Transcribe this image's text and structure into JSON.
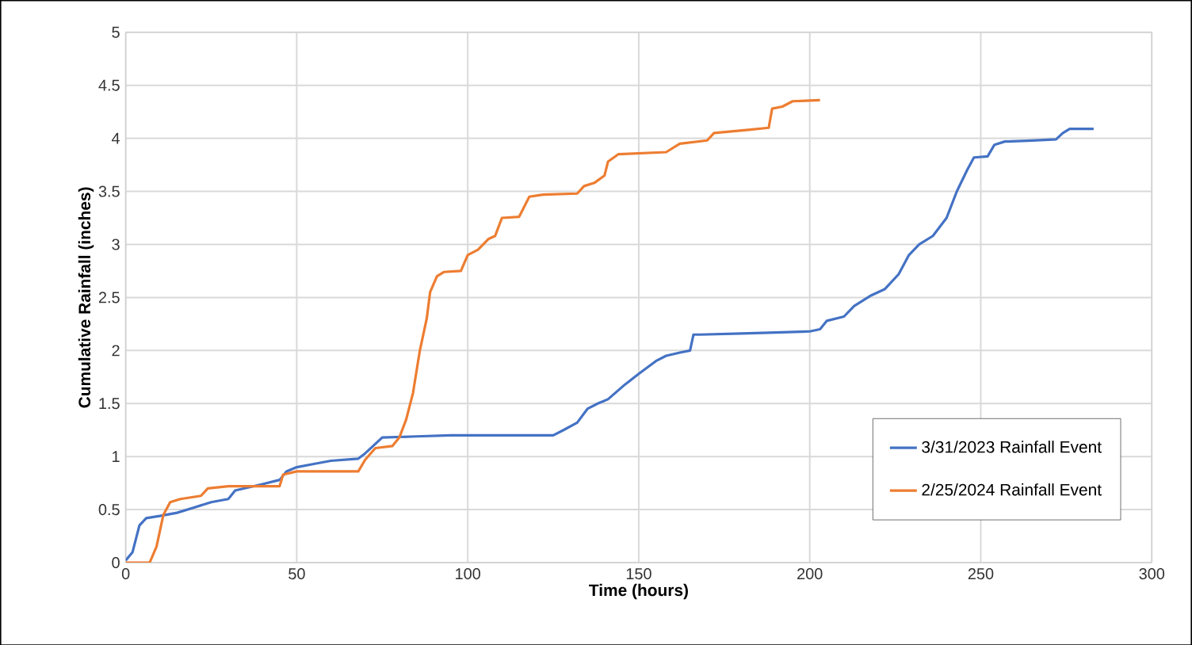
{
  "chart_data": {
    "type": "line",
    "xlabel": "Time (hours)",
    "ylabel": "Cumulative Rainfall (inches)",
    "xlim": [
      0,
      300
    ],
    "xticks": [
      0,
      50,
      100,
      150,
      200,
      250,
      300
    ],
    "ylim": [
      0,
      5
    ],
    "yticks": [
      0,
      0.5,
      1,
      1.5,
      2,
      2.5,
      3,
      3.5,
      4,
      4.5,
      5
    ],
    "grid": true,
    "legend": "bottom right",
    "marker": "none",
    "line_style": "solid",
    "series": [
      {
        "name": "3/31/2023 Rainfall Event",
        "color": "#4472c4",
        "x": [
          0,
          2,
          4,
          6,
          10,
          15,
          20,
          25,
          30,
          32,
          40,
          45,
          47,
          50,
          55,
          60,
          68,
          70,
          73,
          75,
          85,
          95,
          110,
          125,
          128,
          132,
          135,
          138,
          141,
          146,
          150,
          155,
          158,
          162,
          165,
          166,
          168,
          180,
          190,
          200,
          203,
          205,
          210,
          213,
          218,
          222,
          226,
          229,
          232,
          236,
          240,
          243,
          246,
          248,
          252,
          254,
          257,
          265,
          272,
          274,
          276,
          283
        ],
        "values": [
          0.02,
          0.1,
          0.35,
          0.42,
          0.44,
          0.47,
          0.52,
          0.57,
          0.6,
          0.68,
          0.74,
          0.78,
          0.86,
          0.9,
          0.93,
          0.96,
          0.98,
          1.03,
          1.12,
          1.18,
          1.19,
          1.2,
          1.2,
          1.2,
          1.25,
          1.32,
          1.45,
          1.5,
          1.54,
          1.68,
          1.78,
          1.9,
          1.95,
          1.98,
          2.0,
          2.15,
          2.15,
          2.16,
          2.17,
          2.18,
          2.2,
          2.28,
          2.32,
          2.42,
          2.52,
          2.58,
          2.72,
          2.9,
          3.0,
          3.08,
          3.25,
          3.5,
          3.7,
          3.82,
          3.83,
          3.94,
          3.97,
          3.98,
          3.99,
          4.05,
          4.09,
          4.09
        ]
      },
      {
        "name": "2/25/2024 Rainfall Event",
        "color": "#ed7d31",
        "x": [
          0,
          7,
          9,
          11,
          13,
          16,
          22,
          24,
          30,
          45,
          46,
          50,
          68,
          70,
          73,
          78,
          80,
          82,
          84,
          86,
          88,
          89,
          91,
          93,
          98,
          100,
          103,
          106,
          108,
          110,
          115,
          118,
          122,
          132,
          134,
          137,
          140,
          141,
          144,
          158,
          162,
          170,
          172,
          182,
          188,
          189,
          192,
          195,
          203
        ],
        "values": [
          0,
          0,
          0.15,
          0.45,
          0.57,
          0.6,
          0.63,
          0.7,
          0.72,
          0.72,
          0.83,
          0.86,
          0.86,
          0.97,
          1.08,
          1.1,
          1.18,
          1.35,
          1.6,
          2.0,
          2.3,
          2.55,
          2.7,
          2.74,
          2.75,
          2.9,
          2.95,
          3.05,
          3.08,
          3.25,
          3.26,
          3.45,
          3.47,
          3.48,
          3.55,
          3.58,
          3.65,
          3.78,
          3.85,
          3.87,
          3.95,
          3.98,
          4.05,
          4.08,
          4.1,
          4.28,
          4.3,
          4.35,
          4.36
        ]
      }
    ]
  }
}
